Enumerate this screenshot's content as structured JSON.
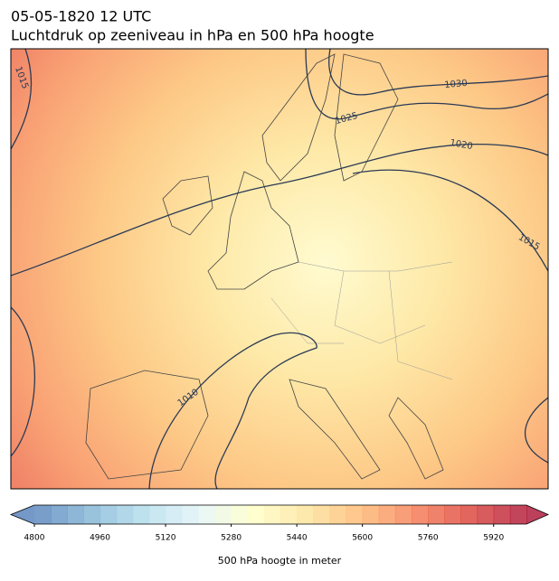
{
  "map": {
    "title": "05-05-1820 12 UTC",
    "subtitle": "Luchtdruk op zeeniveau in hPa en 500 hPa hoogte",
    "contour_labels": [
      1015,
      1030,
      1025,
      1020,
      1015,
      1010
    ],
    "colorbar": {
      "lim": [
        4800,
        6000
      ],
      "ticks": [
        4800,
        4960,
        5120,
        5280,
        5440,
        5600,
        5760,
        5920
      ],
      "label": "500 hPa hoogte in meter"
    }
  }
}
